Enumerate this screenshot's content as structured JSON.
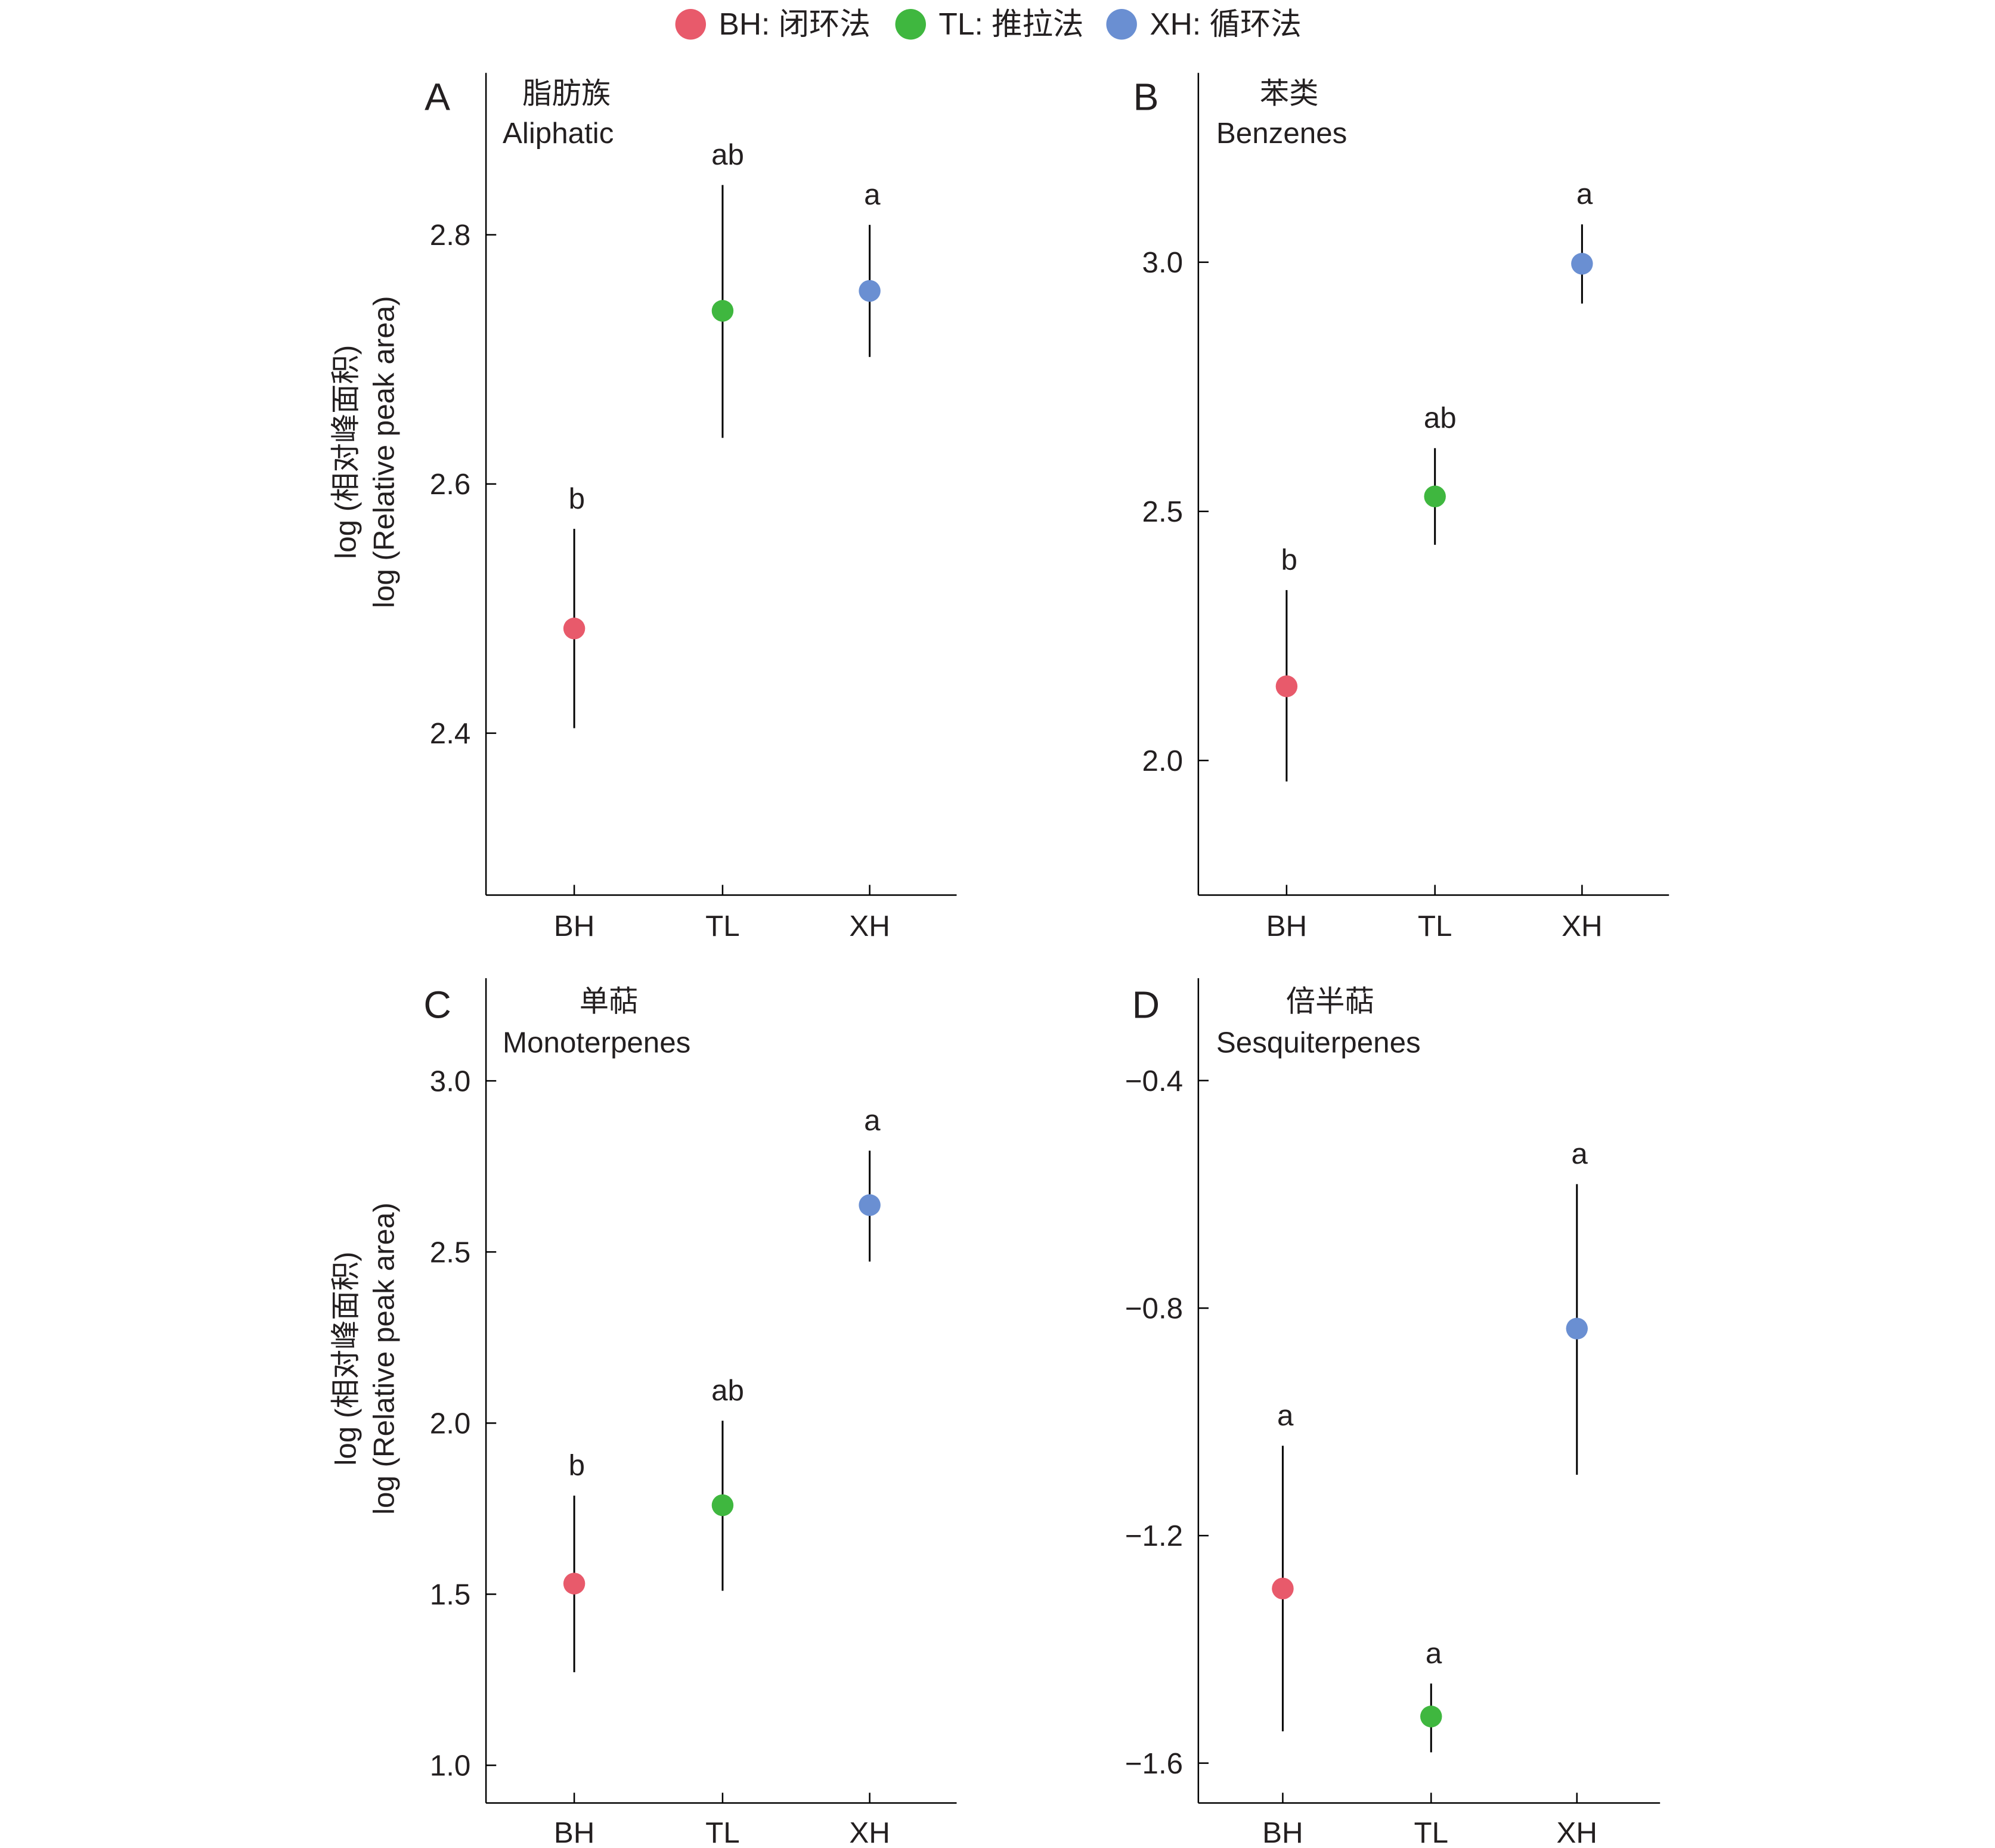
{
  "legend": [
    {
      "key": "BH",
      "label": "BH: 闭环法",
      "color": "#e85a6b"
    },
    {
      "key": "TL",
      "label": "TL: 推拉法",
      "color": "#3fb73f"
    },
    {
      "key": "XH",
      "label": "XH: 循环法",
      "color": "#6a8fd2"
    }
  ],
  "ylabel_cn": "log (相对峰面积)",
  "ylabel_en": "log (Relative peak area)",
  "chart_data": [
    {
      "type": "scatter",
      "panel": "A",
      "title_cn": "脂肪族",
      "title_en": "Aliphatic",
      "categories": [
        "BH",
        "TL",
        "XH"
      ],
      "values": [
        2.484,
        2.739,
        2.755
      ],
      "err_upper": [
        2.564,
        2.84,
        2.808
      ],
      "err_lower": [
        2.404,
        2.637,
        2.702
      ],
      "sig_letters": [
        "b",
        "ab",
        "a"
      ],
      "yticks": [
        2.4,
        2.6,
        2.8
      ],
      "ytick_labels": [
        "2.4",
        "2.6",
        "2.8"
      ],
      "ylim": [
        2.27,
        2.93
      ],
      "xlabel": "",
      "ylabel": "log (相对峰面积) log (Relative peak area)"
    },
    {
      "type": "scatter",
      "panel": "B",
      "title_cn": "苯类",
      "title_en": "Benzenes",
      "categories": [
        "BH",
        "TL",
        "XH"
      ],
      "values": [
        2.149,
        2.53,
        2.997
      ],
      "err_upper": [
        2.342,
        2.627,
        3.076
      ],
      "err_lower": [
        1.958,
        2.433,
        2.917
      ],
      "sig_letters": [
        "b",
        "ab",
        "a"
      ],
      "yticks": [
        2.0,
        2.5,
        3.0
      ],
      "ytick_labels": [
        "2.0",
        "2.5",
        "3.0"
      ],
      "ylim": [
        1.73,
        3.38
      ],
      "xlabel": "",
      "ylabel": ""
    },
    {
      "type": "scatter",
      "panel": "C",
      "title_cn": "单萜",
      "title_en": "Monoterpenes",
      "categories": [
        "BH",
        "TL",
        "XH"
      ],
      "values": [
        1.531,
        1.76,
        2.637
      ],
      "err_upper": [
        1.788,
        2.007,
        2.796
      ],
      "err_lower": [
        1.272,
        1.51,
        2.472
      ],
      "sig_letters": [
        "b",
        "ab",
        "a"
      ],
      "yticks": [
        1.0,
        1.5,
        2.0,
        2.5,
        3.0
      ],
      "ytick_labels": [
        "1.0",
        "1.5",
        "2.0",
        "2.5",
        "3.0"
      ],
      "ylim": [
        0.89,
        3.3
      ],
      "xlabel": "",
      "ylabel": "log (相对峰面积) log (Relative peak area)"
    },
    {
      "type": "scatter",
      "panel": "D",
      "title_cn": "倍半萜",
      "title_en": "Sesquiterpenes",
      "categories": [
        "BH",
        "TL",
        "XH"
      ],
      "values": [
        -1.293,
        -1.518,
        -0.836
      ],
      "err_upper": [
        -1.042,
        -1.46,
        -0.582
      ],
      "err_lower": [
        -1.544,
        -1.581,
        -1.093
      ],
      "sig_letters": [
        "a",
        "a",
        "a"
      ],
      "yticks": [
        -1.6,
        -1.2,
        -0.8,
        -0.4
      ],
      "ytick_labels": [
        "−1.6",
        "−1.2",
        "−0.8",
        "−0.4"
      ],
      "ylim": [
        -1.67,
        -0.22
      ],
      "xlabel": "",
      "ylabel": ""
    }
  ]
}
